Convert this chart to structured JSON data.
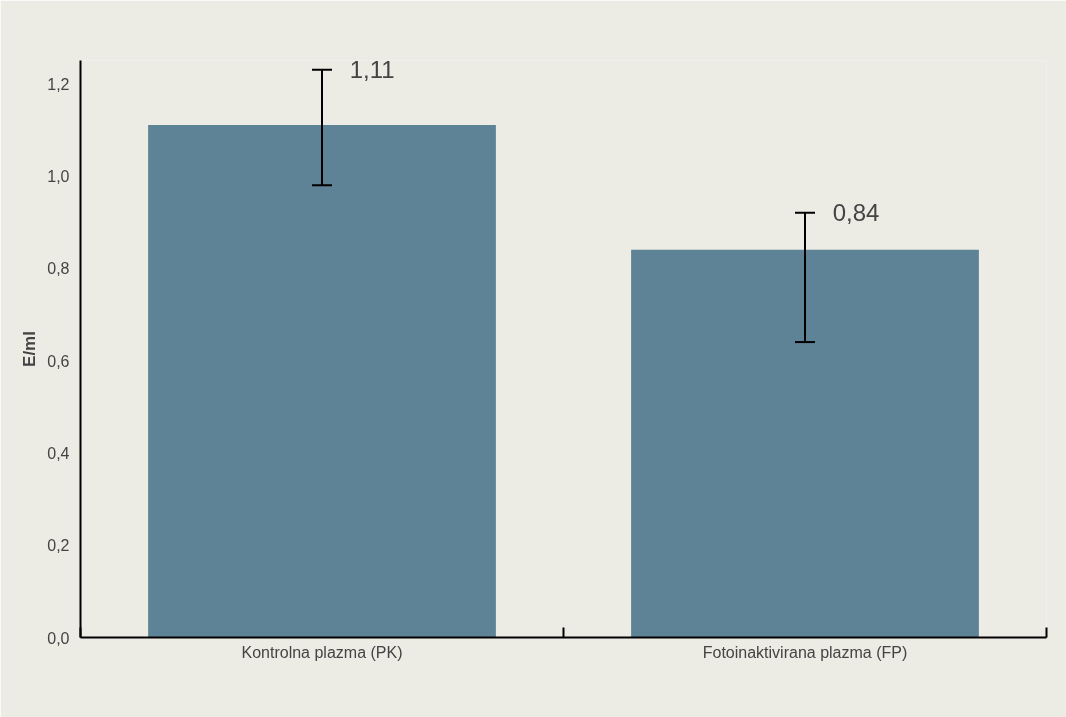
{
  "chart_data": {
    "type": "bar",
    "ylabel": "E/ml",
    "categories": [
      "Kontrolna plazma (PK)",
      "Fotoinaktivirana plazma (FP)"
    ],
    "values": [
      1.11,
      0.84
    ],
    "color": "#5f8396",
    "errors": [
      [
        0.98,
        1.23
      ],
      [
        0.64,
        0.92
      ]
    ],
    "value_labels": [
      "1,11",
      "0,84"
    ],
    "ylim": [
      0,
      1.25
    ],
    "yticks": [
      {
        "value": 0,
        "label": "0,0"
      },
      {
        "value": 0.2,
        "label": "0,2"
      },
      {
        "value": 0.4,
        "label": "0,4"
      },
      {
        "value": 0.6,
        "label": "0,6"
      },
      {
        "value": 0.8,
        "label": "0,8"
      },
      {
        "value": 1.0,
        "label": "1,0"
      },
      {
        "value": 1.2,
        "label": "1,2"
      }
    ],
    "grid": false
  }
}
